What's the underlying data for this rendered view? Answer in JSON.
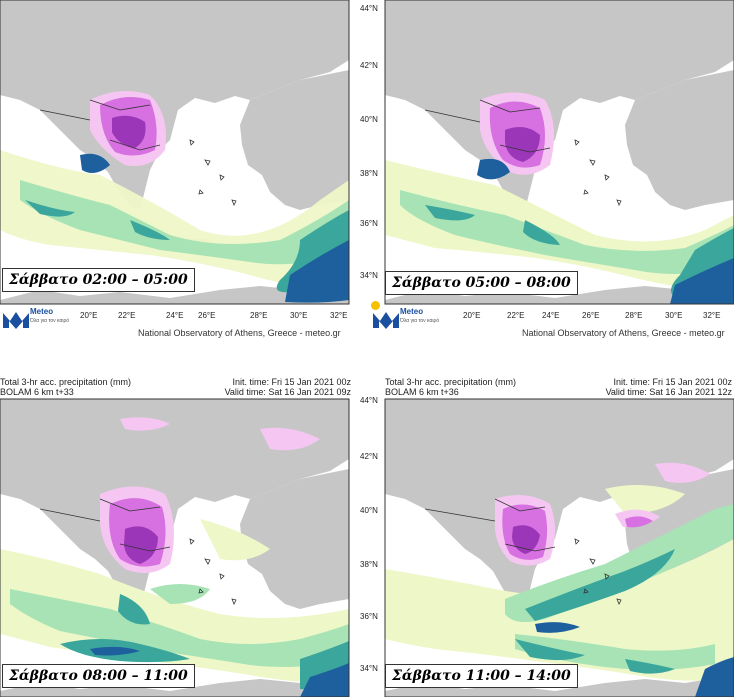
{
  "panels": [
    {
      "caption": "Σάββατο 02:00 – 05:00",
      "credit": "National Observatory of Athens, Greece - meteo.gr",
      "logo": {
        "name": "Meteo",
        "tagline": "Όλα για τον καιρό"
      }
    },
    {
      "caption": "Σάββατο 05:00 – 08:00",
      "credit": "National Observatory of Athens, Greece - meteo.gr",
      "logo": {
        "name": "Meteo",
        "tagline": "Όλα για τον καιρό"
      }
    },
    {
      "caption": "Σάββατο 08:00 – 11:00",
      "title": "Total 3-hr acc. precipitation (mm)",
      "model": "BOLAM 6 km t+33",
      "init_time": "Init. time: Fri 15 Jan 2021 00z",
      "valid_time": "Valid time: Sat 16 Jan 2021 09z"
    },
    {
      "caption": "Σάββατο 11:00 – 14:00",
      "title": "Total 3-hr acc. precipitation (mm)",
      "model": "BOLAM 6 km t+36",
      "init_time": "Init. time: Fri 15 Jan 2021 00z",
      "valid_time": "Valid time: Sat 16 Jan 2021 12z"
    }
  ],
  "axes": {
    "lat_labels": [
      "44°N",
      "42°N",
      "40°N",
      "38°N",
      "36°N",
      "34°N"
    ],
    "lon_labels": [
      "20°E",
      "22°E",
      "24°E",
      "26°E",
      "28°E",
      "30°E",
      "32°E"
    ]
  },
  "colors": {
    "land": "#c6c6c6",
    "sea": "#ffffff",
    "precip_light": "#eef7c8",
    "precip_green": "#a7e3b4",
    "precip_teal": "#3aa69c",
    "precip_blue": "#1e5f9e",
    "precip_pink": "#f6c6f3",
    "precip_magenta": "#d770e0",
    "precip_purple": "#9b36b8"
  }
}
